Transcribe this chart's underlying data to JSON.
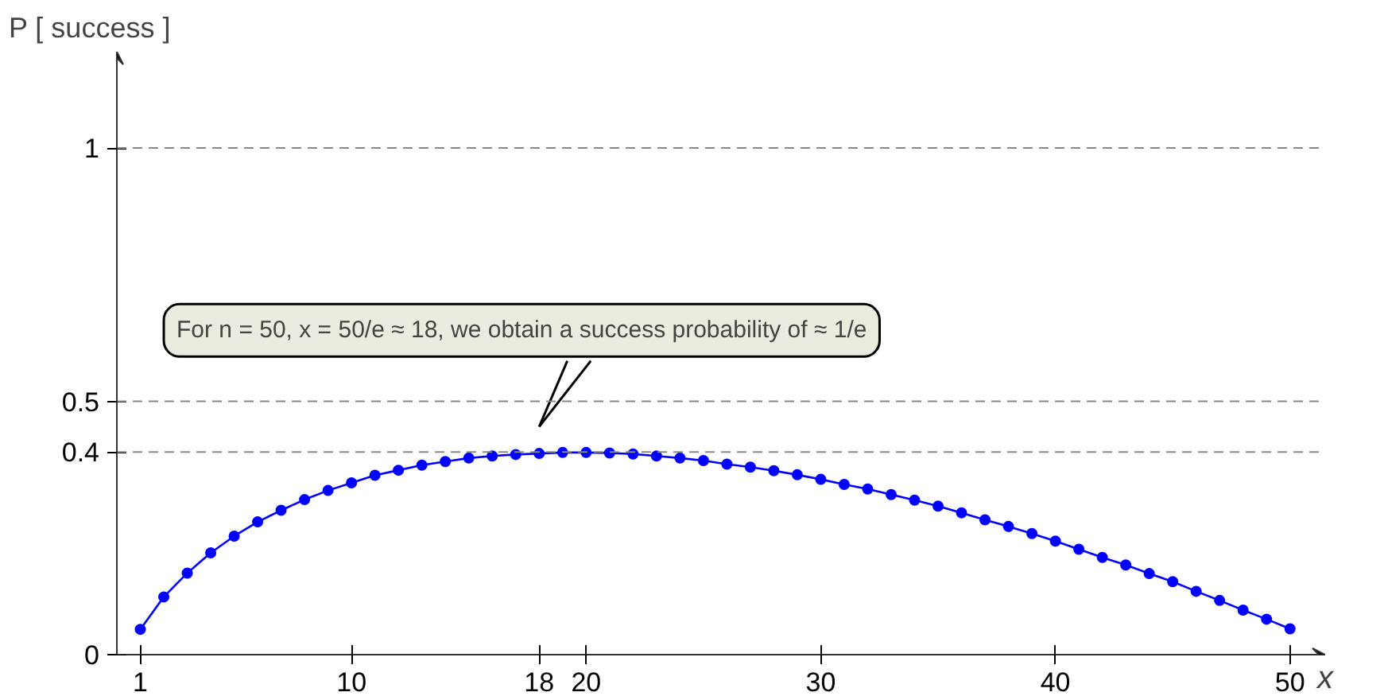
{
  "chart_data": {
    "type": "line",
    "xlabel": "x",
    "ylabel": "P [ success ]",
    "x": [
      1,
      2,
      3,
      4,
      5,
      6,
      7,
      8,
      9,
      10,
      11,
      12,
      13,
      14,
      15,
      16,
      17,
      18,
      19,
      20,
      21,
      22,
      23,
      24,
      25,
      26,
      27,
      28,
      29,
      30,
      31,
      32,
      33,
      34,
      35,
      36,
      37,
      38,
      39,
      40,
      41,
      42,
      43,
      44,
      45,
      46,
      47,
      48,
      49,
      50
    ],
    "series": [
      {
        "color": "#0000ff",
        "values": [
          0.05,
          0.114,
          0.161,
          0.201,
          0.234,
          0.262,
          0.285,
          0.306,
          0.324,
          0.339,
          0.354,
          0.364,
          0.374,
          0.381,
          0.388,
          0.392,
          0.395,
          0.397,
          0.399,
          0.399,
          0.398,
          0.396,
          0.392,
          0.388,
          0.383,
          0.376,
          0.37,
          0.363,
          0.355,
          0.346,
          0.336,
          0.327,
          0.316,
          0.305,
          0.293,
          0.28,
          0.266,
          0.253,
          0.239,
          0.224,
          0.208,
          0.192,
          0.177,
          0.16,
          0.144,
          0.125,
          0.107,
          0.088,
          0.07,
          0.051
        ]
      }
    ],
    "xlim": [
      0,
      51.5
    ],
    "ylim": [
      0,
      1.19
    ],
    "xticks": [
      1,
      10,
      18,
      20,
      30,
      40,
      50
    ],
    "yticks": [
      0,
      0.4,
      0.5,
      1
    ],
    "marker": "circle",
    "line_style": "solid",
    "ref_lines": [
      {
        "axis": "y",
        "value": 0.4,
        "color": "#888888",
        "line_style": "dashed"
      },
      {
        "axis": "y",
        "value": 0.5,
        "color": "#888888",
        "line_style": "dashed"
      },
      {
        "axis": "y",
        "value": 1,
        "color": "#888888",
        "line_style": "dashed"
      }
    ],
    "annotations": [
      "For n = 50, x = 50/e ≈ 18, we obtain a success probability of ≈ 1/e"
    ]
  }
}
